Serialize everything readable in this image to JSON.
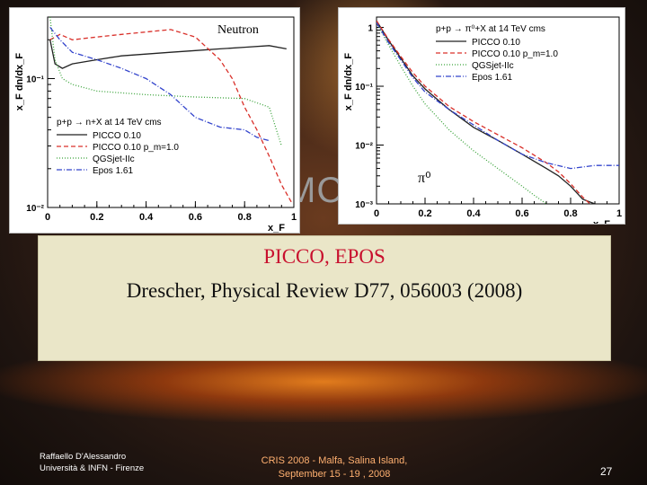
{
  "background_text": "MC",
  "annotations": {
    "neutron": "Neutron",
    "pi0": "π⁰"
  },
  "textbox": {
    "line1": "PICCO, EPOS",
    "line2": "Drescher, Physical Review D77, 056003 (2008)"
  },
  "footer": {
    "author_line1": "Raffaello D'Alessandro",
    "author_line2": "Università & INFN - Firenze",
    "conf_line1": "CRIS 2008 -    Malfa, Salina Island,",
    "conf_line2": "September 15 - 19 , 2008",
    "page_number": "27"
  },
  "colors": {
    "picco": "#222222",
    "picco_pm": "#d9302a",
    "qgsjet": "#3aa33a",
    "epos": "#3344cc",
    "textbox_red": "#c8102e"
  },
  "chart_data": [
    {
      "type": "line",
      "ylabel": "x_F dn/dx_F",
      "xlabel": "x_F",
      "xlim": [
        0,
        1
      ],
      "ylim": [
        0.01,
        0.3
      ],
      "yscale": "log",
      "xticks": [
        "0",
        "0.2",
        "0.4",
        "0.6",
        "0.8",
        "1"
      ],
      "yticks": [
        {
          "v": 0.1,
          "label": "10⁻¹"
        },
        {
          "v": 0.01,
          "label": "10⁻²"
        }
      ],
      "legend_title": "p+p → n+X at 14 TeV cms",
      "legend_position": "bottom-left",
      "series": [
        {
          "name": "PICCO 0.10",
          "color": "#222222",
          "dash": "",
          "x": [
            0.01,
            0.03,
            0.06,
            0.1,
            0.2,
            0.3,
            0.4,
            0.5,
            0.6,
            0.7,
            0.8,
            0.9,
            0.97
          ],
          "y": [
            0.2,
            0.13,
            0.12,
            0.13,
            0.14,
            0.15,
            0.155,
            0.16,
            0.165,
            0.17,
            0.175,
            0.18,
            0.17
          ]
        },
        {
          "name": "PICCO 0.10 p_m=1.0",
          "color": "#d9302a",
          "dash": "5,3",
          "x": [
            0.01,
            0.05,
            0.1,
            0.2,
            0.3,
            0.4,
            0.5,
            0.6,
            0.7,
            0.75,
            0.8,
            0.85,
            0.9,
            0.95,
            0.99
          ],
          "y": [
            0.2,
            0.22,
            0.2,
            0.21,
            0.22,
            0.23,
            0.24,
            0.21,
            0.14,
            0.1,
            0.06,
            0.04,
            0.025,
            0.015,
            0.011
          ]
        },
        {
          "name": "QGSjet-IIc",
          "color": "#3aa33a",
          "dash": "1,2",
          "x": [
            0.01,
            0.03,
            0.06,
            0.1,
            0.2,
            0.4,
            0.6,
            0.8,
            0.9,
            0.95
          ],
          "y": [
            0.3,
            0.14,
            0.1,
            0.09,
            0.08,
            0.075,
            0.072,
            0.07,
            0.06,
            0.03
          ]
        },
        {
          "name": "Epos 1.61",
          "color": "#3344cc",
          "dash": "6,2,1,2",
          "x": [
            0.01,
            0.05,
            0.1,
            0.2,
            0.3,
            0.4,
            0.5,
            0.6,
            0.7,
            0.8,
            0.85,
            0.9
          ],
          "y": [
            0.25,
            0.2,
            0.16,
            0.14,
            0.12,
            0.1,
            0.075,
            0.05,
            0.042,
            0.04,
            0.035,
            0.033
          ]
        }
      ]
    },
    {
      "type": "line",
      "ylabel": "x_F dn/dx_F",
      "xlabel": "x_F",
      "xlim": [
        0,
        1
      ],
      "ylim": [
        0.001,
        1.5
      ],
      "yscale": "log",
      "xticks": [
        "0",
        "0.2",
        "0.4",
        "0.6",
        "0.8",
        "1"
      ],
      "yticks": [
        {
          "v": 1,
          "label": "1"
        },
        {
          "v": 0.1,
          "label": "10⁻¹"
        },
        {
          "v": 0.01,
          "label": "10⁻²"
        },
        {
          "v": 0.001,
          "label": "10⁻³"
        }
      ],
      "legend_title": "p+p → π⁰+X at 14 TeV cms",
      "legend_position": "top-right",
      "series": [
        {
          "name": "PICCO 0.10",
          "color": "#222222",
          "dash": "",
          "x": [
            0.0,
            0.05,
            0.1,
            0.15,
            0.2,
            0.3,
            0.4,
            0.5,
            0.6,
            0.7,
            0.75,
            0.8,
            0.85,
            0.9
          ],
          "y": [
            1.3,
            0.6,
            0.3,
            0.15,
            0.09,
            0.04,
            0.02,
            0.012,
            0.007,
            0.004,
            0.003,
            0.002,
            0.0012,
            0.001
          ]
        },
        {
          "name": "PICCO 0.10 p_m=1.0",
          "color": "#d9302a",
          "dash": "5,3",
          "x": [
            0.0,
            0.05,
            0.1,
            0.15,
            0.2,
            0.3,
            0.4,
            0.5,
            0.6,
            0.7,
            0.75,
            0.8,
            0.85,
            0.88
          ],
          "y": [
            1.3,
            0.62,
            0.32,
            0.17,
            0.1,
            0.045,
            0.025,
            0.015,
            0.009,
            0.005,
            0.0035,
            0.0022,
            0.0013,
            0.001
          ]
        },
        {
          "name": "QGSjet-IIc",
          "color": "#3aa33a",
          "dash": "1,2",
          "x": [
            0.0,
            0.05,
            0.1,
            0.15,
            0.2,
            0.3,
            0.4,
            0.5,
            0.6,
            0.65,
            0.7
          ],
          "y": [
            1.2,
            0.5,
            0.22,
            0.1,
            0.05,
            0.018,
            0.008,
            0.004,
            0.002,
            0.0014,
            0.001
          ]
        },
        {
          "name": "Epos 1.61",
          "color": "#3344cc",
          "dash": "6,2,1,2",
          "x": [
            0.0,
            0.05,
            0.1,
            0.15,
            0.2,
            0.3,
            0.4,
            0.5,
            0.6,
            0.7,
            0.8,
            0.9,
            1.0
          ],
          "y": [
            1.2,
            0.55,
            0.28,
            0.14,
            0.08,
            0.04,
            0.022,
            0.012,
            0.007,
            0.005,
            0.004,
            0.0045,
            0.0045
          ]
        }
      ]
    }
  ]
}
